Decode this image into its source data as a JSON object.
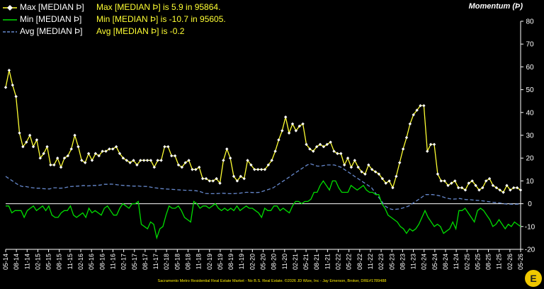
{
  "header": {
    "title": "Momentum (Þ)"
  },
  "legend": [
    {
      "name": "Max [MEDIAN Þ]",
      "stat": "Max [MEDIAN Þ] is 5.9 in 95864.",
      "color": "#ffff33"
    },
    {
      "name": "Min [MEDIAN Þ]",
      "stat": "Min [MEDIAN Þ] is -10.7 in 95605.",
      "color": "#00dd00"
    },
    {
      "name": "Avg [MEDIAN Þ]",
      "stat": "Avg [MEDIAN Þ] is -0.2",
      "color": "#6688cc"
    }
  ],
  "footer": "Sacramento Metro Residential Real Estate Market - No B.S. Real Estate. ©2026 JD Wize, Inc - Jay Emerson, Broker, DRE#1789488",
  "logo_text": "E",
  "chart_data": {
    "type": "line",
    "title": "Momentum (Þ)",
    "ylim": [
      -20,
      80
    ],
    "yticks": [
      -20,
      -10,
      0,
      10,
      20,
      30,
      40,
      50,
      60,
      70,
      80
    ],
    "y_axis_position": "right",
    "grid": false,
    "legend_position": "top-left",
    "x_tick_labels": [
      "05-14",
      "08-14",
      "11-14",
      "02-15",
      "05-15",
      "08-15",
      "11-15",
      "02-16",
      "05-16",
      "08-16",
      "11-16",
      "02-17",
      "05-17",
      "08-17",
      "11-17",
      "02-18",
      "05-18",
      "08-18",
      "11-18",
      "02-19",
      "05-19",
      "08-19",
      "11-19",
      "02-20",
      "05-20",
      "08-20",
      "11-20",
      "02-21",
      "05-21",
      "08-21",
      "11-21",
      "02-22",
      "05-22",
      "08-22",
      "11-22",
      "02-23",
      "05-23",
      "08-23",
      "11-23",
      "02-24",
      "05-24",
      "08-24",
      "11-24",
      "02-25",
      "05-25",
      "08-25",
      "11-25",
      "02-26",
      "05-26"
    ],
    "series": [
      {
        "name": "Max [MEDIAN Þ]",
        "color": "#ffff33",
        "marker": "diamond",
        "values": [
          51,
          58.5,
          52,
          47,
          31,
          25,
          27,
          30,
          25,
          28,
          20,
          22,
          25,
          17,
          17,
          20,
          16,
          20,
          21,
          24,
          30,
          25,
          19,
          18,
          22,
          19,
          22,
          21,
          23,
          23,
          24,
          24,
          25,
          22,
          20,
          19,
          18,
          19,
          17,
          19,
          19,
          19,
          19,
          16,
          19,
          19,
          25,
          25,
          21,
          21,
          17,
          16,
          18,
          19,
          15,
          15,
          16,
          11,
          11,
          10,
          10,
          11,
          9,
          19,
          24,
          20,
          12,
          10,
          12,
          11,
          19,
          17,
          15,
          15,
          15,
          15,
          17,
          19,
          23,
          28,
          32,
          38,
          31,
          35,
          32,
          34,
          35,
          26,
          24,
          23,
          25,
          26,
          25,
          26,
          27,
          23,
          22,
          22,
          17,
          20,
          16,
          19,
          16,
          14,
          13,
          17,
          15,
          14,
          13,
          11,
          9,
          10,
          7,
          12,
          18,
          24,
          29,
          35,
          39,
          41,
          43,
          43,
          23,
          26,
          26,
          13,
          10,
          10,
          8,
          9,
          10,
          7,
          7,
          6,
          9,
          10,
          8,
          6,
          7,
          10,
          11,
          8,
          7,
          6,
          5,
          8,
          6,
          7,
          7,
          6
        ]
      },
      {
        "name": "Min [MEDIAN Þ]",
        "color": "#00dd00",
        "marker": "none",
        "values": [
          -1,
          -1,
          -4,
          -3,
          -3,
          -3,
          -6,
          -3,
          -2,
          -1,
          -3,
          -2,
          -1,
          -3,
          -1,
          -5,
          -6,
          -6,
          -4,
          -3,
          -3,
          -1,
          -5,
          -6,
          -5,
          -4,
          -6,
          -2,
          -4,
          -3,
          -4,
          -5,
          -2,
          -1,
          -3,
          -5,
          -5,
          -2,
          0,
          -1,
          -2,
          0,
          0,
          1,
          -9,
          -10,
          -11,
          -8,
          -9,
          -15,
          -11,
          -10,
          -5,
          -1,
          -2,
          -2,
          -1,
          -3,
          -6,
          -7,
          -8,
          1,
          0,
          -2,
          -1,
          -1,
          -2,
          -1,
          0,
          -2,
          -3,
          -2,
          -3,
          -2,
          -3,
          -1,
          -3,
          -2,
          -1,
          -2,
          -2,
          -3,
          -4,
          -6,
          -2,
          -3,
          -3,
          -1,
          -1,
          -3,
          -2,
          -3,
          -4,
          -1,
          1,
          1,
          0,
          1,
          1,
          2,
          5,
          5,
          8,
          10,
          8,
          6,
          10,
          10,
          7,
          5,
          5,
          5,
          8,
          7,
          6,
          7,
          8,
          6,
          5,
          5,
          4,
          4,
          0,
          -2,
          -5,
          -6,
          -7,
          -8,
          -10,
          -11,
          -13,
          -11,
          -12,
          -11,
          -9,
          -6,
          -3,
          -6,
          -8,
          -10,
          -9,
          -10,
          -13,
          -12,
          -11,
          -8,
          -11,
          -3,
          -3,
          -2,
          -4,
          -6,
          -8,
          -3,
          -2,
          -3,
          -5,
          -7,
          -10,
          -9,
          -7,
          -9,
          -11,
          -9,
          -10,
          -8,
          -9,
          -10
        ]
      },
      {
        "name": "Avg [MEDIAN Þ]",
        "color": "#6688cc",
        "marker": "none",
        "dashed": true,
        "values": [
          12,
          11,
          10,
          9,
          8,
          7.5,
          7.5,
          7.2,
          7,
          6.8,
          6.8,
          6.6,
          6.5,
          6.5,
          7,
          7,
          6.8,
          6.9,
          7.2,
          7.5,
          7.6,
          7.7,
          7.8,
          8,
          7.8,
          7.9,
          8,
          8,
          8.2,
          8.5,
          8.5,
          8.6,
          8.5,
          8.3,
          8.1,
          8,
          7.9,
          7.8,
          7.7,
          7.8,
          7.6,
          7.6,
          7.5,
          7.2,
          7,
          6.8,
          6.6,
          6.5,
          6.4,
          6.3,
          6.2,
          6.1,
          6,
          5.9,
          5.9,
          5.8,
          5.7,
          5.5,
          5,
          4.5,
          4.4,
          4.4,
          4.4,
          4.5,
          4.6,
          4.5,
          4.4,
          4.4,
          4.5,
          4.6,
          4.8,
          5,
          5,
          4.9,
          4.9,
          5,
          5.5,
          6,
          6.5,
          7,
          8,
          9,
          10,
          11,
          12,
          13,
          14,
          15,
          16,
          17,
          17.5,
          17,
          16.5,
          16.5,
          16.8,
          17,
          17,
          17,
          16.5,
          16,
          15,
          14,
          13,
          12,
          11,
          10,
          9,
          8,
          7,
          5,
          3,
          1,
          -1,
          -2,
          -2.5,
          -2.5,
          -2.3,
          -2,
          -1.5,
          -1,
          0,
          1,
          2,
          3,
          4,
          4,
          4,
          3.8,
          3.5,
          3,
          2.5,
          2.2,
          2,
          2.1,
          2.3,
          2,
          1.8,
          1.8,
          1.6,
          1.5,
          1.4,
          1.2,
          1,
          0.8,
          0.6,
          0.5,
          0.3,
          0,
          -0.2,
          -0.2,
          -0.3,
          -0.2,
          -0.2
        ]
      }
    ]
  }
}
